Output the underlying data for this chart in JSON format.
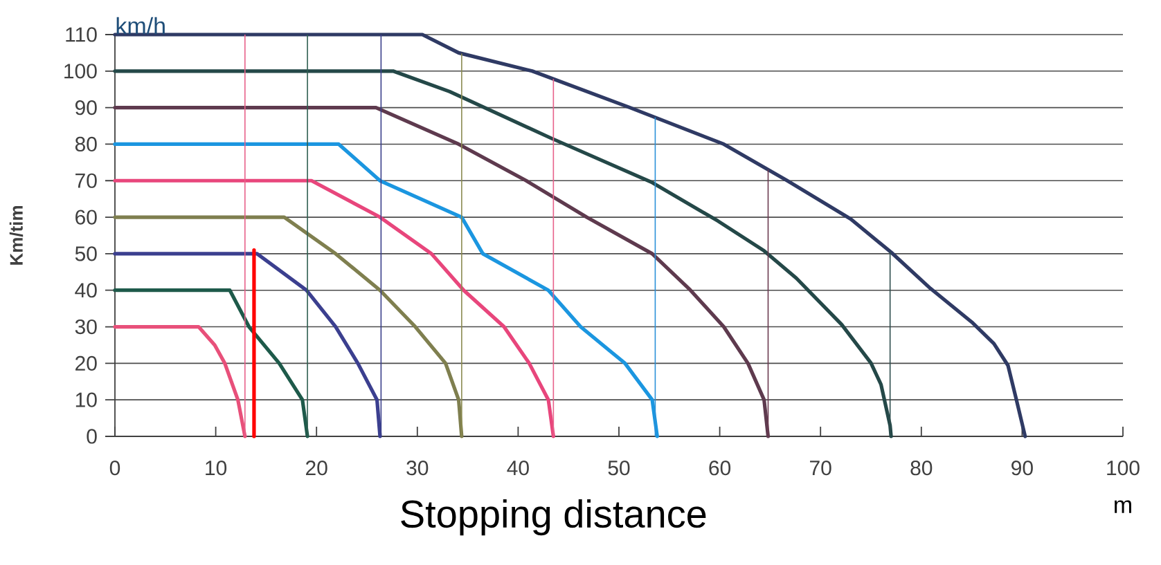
{
  "chart_data": {
    "type": "line",
    "xlabel": "Stopping distance",
    "ylabel": "Km/tim",
    "annotations": [
      "km/h",
      "m"
    ],
    "xlim": [
      0,
      100
    ],
    "ylim": [
      0,
      110
    ],
    "xticks": [
      0,
      10,
      20,
      30,
      40,
      50,
      60,
      70,
      80,
      90,
      100
    ],
    "yticks": [
      0,
      10,
      20,
      30,
      40,
      50,
      60,
      70,
      80,
      90,
      100,
      110
    ],
    "grid": "y",
    "series": [
      {
        "color": "#e8507a",
        "x": [
          0,
          8.3,
          9.9,
          10.9,
          12.2,
          12.9
        ],
        "values": [
          30,
          30,
          25,
          20,
          10,
          0
        ]
      },
      {
        "color": "#1e5a4a",
        "x": [
          0,
          11.4,
          13.3,
          16.3,
          18.6,
          19.1
        ],
        "values": [
          40,
          40,
          30,
          20,
          10,
          0
        ]
      },
      {
        "color": "#3b3f8f",
        "x": [
          0,
          14.1,
          19.0,
          21.9,
          24.1,
          26.0,
          26.3
        ],
        "values": [
          50,
          50,
          40,
          30,
          20,
          10,
          0
        ]
      },
      {
        "color": "#7f7f4f",
        "x": [
          0,
          16.8,
          21.9,
          26.3,
          29.8,
          32.8,
          34.1,
          34.4
        ],
        "values": [
          60,
          60,
          50,
          40,
          30,
          20,
          10,
          0
        ]
      },
      {
        "color": "#e8467c",
        "x": [
          0,
          19.5,
          26.3,
          31.4,
          34.6,
          38.6,
          41.1,
          43.0,
          43.5
        ],
        "values": [
          70,
          70,
          60,
          50,
          40,
          30,
          20,
          10,
          0
        ]
      },
      {
        "color": "#1b96e0",
        "x": [
          0,
          22.2,
          26.3,
          34.4,
          36.5,
          43.0,
          46.2,
          50.6,
          53.3,
          53.8
        ],
        "values": [
          80,
          80,
          70,
          60,
          50,
          40,
          30,
          20,
          10,
          0
        ]
      },
      {
        "color": "#5e3a4e",
        "x": [
          0,
          25.9,
          34.1,
          40.8,
          46.8,
          53.3,
          57.1,
          60.4,
          62.8,
          64.4,
          64.8
        ],
        "values": [
          90,
          90,
          80,
          70,
          60,
          50,
          40,
          30,
          20,
          10,
          0
        ]
      },
      {
        "color": "#244848",
        "x": [
          0,
          27.6,
          33.2,
          43.3,
          53.3,
          59.8,
          64.4,
          67.6,
          72.1,
          75.0,
          76.0,
          76.9,
          77.0
        ],
        "values": [
          100,
          100,
          94.4,
          81.6,
          69.5,
          59,
          50.8,
          43.3,
          30.6,
          20.1,
          14.2,
          3,
          0
        ]
      },
      {
        "color": "#2f3a64",
        "x": [
          0,
          30.5,
          34.1,
          41.4,
          51.1,
          60.4,
          66.7,
          73.0,
          77.0,
          80.9,
          85.0,
          87.2,
          88.6,
          89.4,
          90.3
        ],
        "values": [
          110,
          110,
          105,
          100,
          90,
          80,
          70,
          59.5,
          50.4,
          40.5,
          31.3,
          25.4,
          19.4,
          10.4,
          0
        ]
      },
      {
        "color": "#ff0000",
        "x": [
          13.8,
          13.8
        ],
        "values": [
          51,
          0
        ]
      }
    ],
    "ref_lines": [
      {
        "axis": "x",
        "value": 12.9,
        "color": "#e8608a"
      },
      {
        "axis": "x",
        "value": 19.1,
        "color": "#2e5e50"
      },
      {
        "axis": "x",
        "value": 26.4,
        "color": "#3a3f8a"
      },
      {
        "axis": "x",
        "value": 34.4,
        "color": "#8a8a50"
      },
      {
        "axis": "x",
        "value": 43.5,
        "color": "#e8608a"
      },
      {
        "axis": "x",
        "value": 53.6,
        "color": "#2a90d8"
      },
      {
        "axis": "x",
        "value": 64.8,
        "color": "#6a3a50"
      },
      {
        "axis": "x",
        "value": 76.9,
        "color": "#2e4e4e"
      }
    ]
  }
}
